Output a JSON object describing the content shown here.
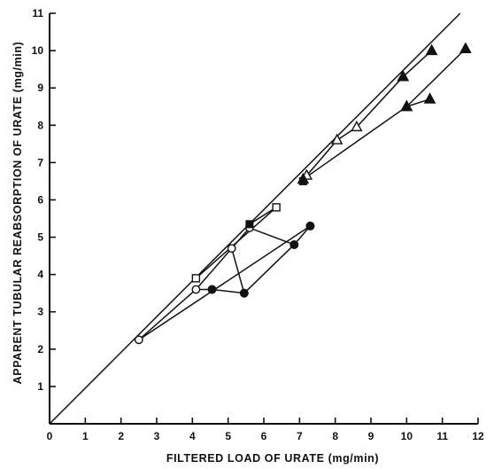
{
  "chart_data": {
    "type": "scatter",
    "xlabel": "FILTERED LOAD OF URATE (mg/min)",
    "ylabel": "APPARENT TUBULAR REABSORPTION OF URATE (mg/min)",
    "xlim": [
      0,
      12
    ],
    "ylim": [
      0,
      11
    ],
    "x_ticks": [
      "0",
      "1",
      "2",
      "3",
      "4",
      "5",
      "6",
      "7",
      "8",
      "9",
      "10",
      "11",
      "12"
    ],
    "y_ticks": [
      "1",
      "2",
      "3",
      "4",
      "5",
      "6",
      "7",
      "8",
      "9",
      "10",
      "11"
    ],
    "grid": false,
    "identity_line": [
      [
        0,
        0
      ],
      [
        11.5,
        11.0
      ]
    ],
    "series": [
      {
        "marker": "open-circle",
        "connected": true,
        "points": [
          [
            2.5,
            2.25
          ],
          [
            4.1,
            3.6
          ],
          [
            5.1,
            4.7
          ],
          [
            5.6,
            5.25
          ]
        ]
      },
      {
        "marker": "filled-circle",
        "connected": true,
        "points": [
          [
            4.55,
            3.6
          ],
          [
            5.45,
            3.5
          ],
          [
            6.85,
            4.8
          ],
          [
            7.3,
            5.3
          ]
        ]
      },
      {
        "marker": "open-square",
        "connected": true,
        "points": [
          [
            4.1,
            3.9
          ],
          [
            6.35,
            5.8
          ]
        ]
      },
      {
        "marker": "filled-square",
        "connected": false,
        "points": [
          [
            5.6,
            5.35
          ],
          [
            7.1,
            6.5
          ]
        ]
      },
      {
        "marker": "open-triangle",
        "connected": true,
        "points": [
          [
            7.2,
            6.65
          ],
          [
            8.05,
            7.6
          ],
          [
            8.6,
            7.95
          ],
          [
            9.9,
            9.3
          ]
        ]
      },
      {
        "marker": "filled-triangle",
        "connected": true,
        "points": [
          [
            7.1,
            6.55
          ],
          [
            10.0,
            8.5
          ],
          [
            10.65,
            8.7
          ]
        ]
      },
      {
        "marker": "filled-triangle",
        "connected": true,
        "points": [
          [
            9.9,
            9.3
          ],
          [
            10.7,
            10.0
          ]
        ]
      },
      {
        "marker": "filled-triangle",
        "connected": true,
        "points": [
          [
            10.0,
            8.5
          ],
          [
            11.65,
            10.05
          ]
        ]
      }
    ],
    "cross_links": [
      [
        [
          4.1,
          3.6
        ],
        [
          4.55,
          3.6
        ]
      ],
      [
        [
          5.1,
          4.7
        ],
        [
          5.45,
          3.5
        ]
      ],
      [
        [
          5.6,
          5.25
        ],
        [
          6.85,
          4.8
        ]
      ],
      [
        [
          2.5,
          2.25
        ],
        [
          7.3,
          5.3
        ]
      ],
      [
        [
          5.6,
          5.35
        ],
        [
          6.35,
          5.8
        ]
      ]
    ]
  }
}
